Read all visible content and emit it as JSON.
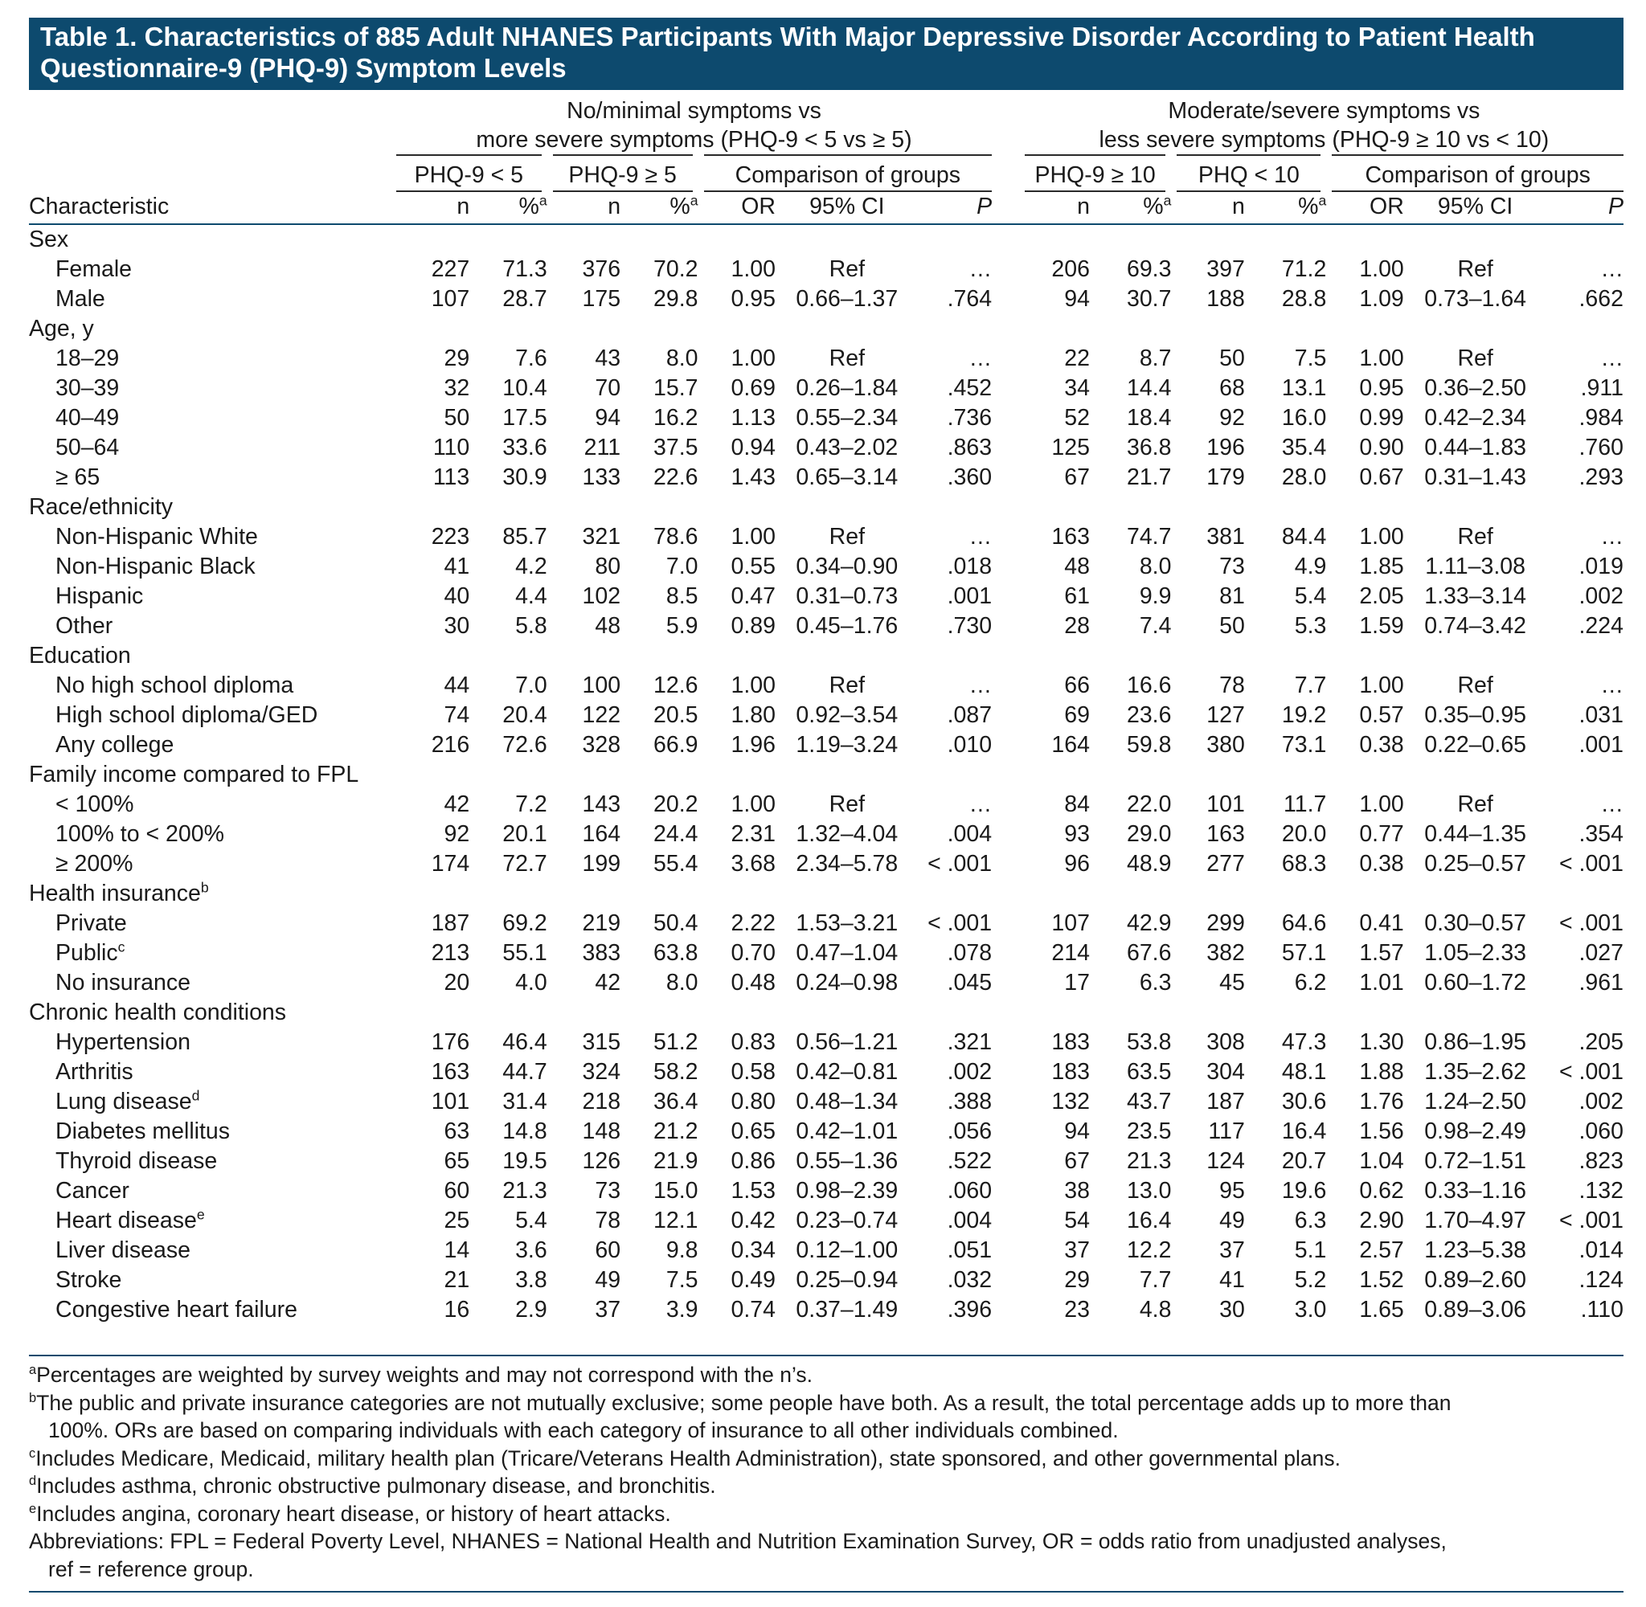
{
  "title": {
    "line1": "Table 1. Characteristics of 885 Adult NHANES Participants With Major Depressive Disorder According to Patient Health",
    "line2": "Questionnaire-9 (PHQ-9) Symptom Levels"
  },
  "groups": {
    "left_line1": "No/minimal symptoms vs",
    "left_line2": "more severe symptoms (PHQ-9 < 5 vs ≥ 5)",
    "right_line1": "Moderate/severe symptoms vs",
    "right_line2": "less severe symptoms (PHQ-9 ≥ 10 vs < 10)"
  },
  "subgroups": {
    "a": "PHQ-9 < 5",
    "b": "PHQ-9 ≥ 5",
    "c": "Comparison of groups",
    "d": "PHQ-9 ≥ 10",
    "e": "PHQ < 10",
    "f": "Comparison of groups"
  },
  "columns": {
    "characteristic": "Characteristic",
    "n": "n",
    "pct": "%",
    "pct_sup": "a",
    "or": "OR",
    "ci": "95% CI",
    "p": "P"
  },
  "rows": [
    {
      "label": "Sex",
      "type": "section"
    },
    {
      "label": "Female",
      "type": "item",
      "cells": [
        "227",
        "71.3",
        "376",
        "70.2",
        "1.00",
        "Ref",
        "…",
        "206",
        "69.3",
        "397",
        "71.2",
        "1.00",
        "Ref",
        "…"
      ]
    },
    {
      "label": "Male",
      "type": "item",
      "cells": [
        "107",
        "28.7",
        "175",
        "29.8",
        "0.95",
        "0.66–1.37",
        ".764",
        "94",
        "30.7",
        "188",
        "28.8",
        "1.09",
        "0.73–1.64",
        ".662"
      ]
    },
    {
      "label": "Age, y",
      "type": "section"
    },
    {
      "label": "18–29",
      "type": "item",
      "cells": [
        "29",
        "7.6",
        "43",
        "8.0",
        "1.00",
        "Ref",
        "…",
        "22",
        "8.7",
        "50",
        "7.5",
        "1.00",
        "Ref",
        "…"
      ]
    },
    {
      "label": "30–39",
      "type": "item",
      "cells": [
        "32",
        "10.4",
        "70",
        "15.7",
        "0.69",
        "0.26–1.84",
        ".452",
        "34",
        "14.4",
        "68",
        "13.1",
        "0.95",
        "0.36–2.50",
        ".911"
      ]
    },
    {
      "label": "40–49",
      "type": "item",
      "cells": [
        "50",
        "17.5",
        "94",
        "16.2",
        "1.13",
        "0.55–2.34",
        ".736",
        "52",
        "18.4",
        "92",
        "16.0",
        "0.99",
        "0.42–2.34",
        ".984"
      ]
    },
    {
      "label": "50–64",
      "type": "item",
      "cells": [
        "110",
        "33.6",
        "211",
        "37.5",
        "0.94",
        "0.43–2.02",
        ".863",
        "125",
        "36.8",
        "196",
        "35.4",
        "0.90",
        "0.44–1.83",
        ".760"
      ]
    },
    {
      "label": "≥ 65",
      "type": "item",
      "cells": [
        "113",
        "30.9",
        "133",
        "22.6",
        "1.43",
        "0.65–3.14",
        ".360",
        "67",
        "21.7",
        "179",
        "28.0",
        "0.67",
        "0.31–1.43",
        ".293"
      ]
    },
    {
      "label": "Race/ethnicity",
      "type": "section"
    },
    {
      "label": "Non-Hispanic White",
      "type": "item",
      "cells": [
        "223",
        "85.7",
        "321",
        "78.6",
        "1.00",
        "Ref",
        "…",
        "163",
        "74.7",
        "381",
        "84.4",
        "1.00",
        "Ref",
        "…"
      ]
    },
    {
      "label": "Non-Hispanic Black",
      "type": "item",
      "cells": [
        "41",
        "4.2",
        "80",
        "7.0",
        "0.55",
        "0.34–0.90",
        ".018",
        "48",
        "8.0",
        "73",
        "4.9",
        "1.85",
        "1.11–3.08",
        ".019"
      ]
    },
    {
      "label": "Hispanic",
      "type": "item",
      "cells": [
        "40",
        "4.4",
        "102",
        "8.5",
        "0.47",
        "0.31–0.73",
        ".001",
        "61",
        "9.9",
        "81",
        "5.4",
        "2.05",
        "1.33–3.14",
        ".002"
      ]
    },
    {
      "label": "Other",
      "type": "item",
      "cells": [
        "30",
        "5.8",
        "48",
        "5.9",
        "0.89",
        "0.45–1.76",
        ".730",
        "28",
        "7.4",
        "50",
        "5.3",
        "1.59",
        "0.74–3.42",
        ".224"
      ]
    },
    {
      "label": "Education",
      "type": "section"
    },
    {
      "label": "No high school diploma",
      "type": "item",
      "cells": [
        "44",
        "7.0",
        "100",
        "12.6",
        "1.00",
        "Ref",
        "…",
        "66",
        "16.6",
        "78",
        "7.7",
        "1.00",
        "Ref",
        "…"
      ]
    },
    {
      "label": "High school diploma/GED",
      "type": "item",
      "cells": [
        "74",
        "20.4",
        "122",
        "20.5",
        "1.80",
        "0.92–3.54",
        ".087",
        "69",
        "23.6",
        "127",
        "19.2",
        "0.57",
        "0.35–0.95",
        ".031"
      ]
    },
    {
      "label": "Any college",
      "type": "item",
      "cells": [
        "216",
        "72.6",
        "328",
        "66.9",
        "1.96",
        "1.19–3.24",
        ".010",
        "164",
        "59.8",
        "380",
        "73.1",
        "0.38",
        "0.22–0.65",
        ".001"
      ]
    },
    {
      "label": "Family income compared to FPL",
      "type": "section"
    },
    {
      "label": "< 100%",
      "type": "item",
      "cells": [
        "42",
        "7.2",
        "143",
        "20.2",
        "1.00",
        "Ref",
        "…",
        "84",
        "22.0",
        "101",
        "11.7",
        "1.00",
        "Ref",
        "…"
      ]
    },
    {
      "label": "100% to < 200%",
      "type": "item",
      "cells": [
        "92",
        "20.1",
        "164",
        "24.4",
        "2.31",
        "1.32–4.04",
        ".004",
        "93",
        "29.0",
        "163",
        "20.0",
        "0.77",
        "0.44–1.35",
        ".354"
      ]
    },
    {
      "label": "≥ 200%",
      "type": "item",
      "cells": [
        "174",
        "72.7",
        "199",
        "55.4",
        "3.68",
        "2.34–5.78",
        "< .001",
        "96",
        "48.9",
        "277",
        "68.3",
        "0.38",
        "0.25–0.57",
        "< .001"
      ]
    },
    {
      "label": "Health insurance",
      "sup": "b",
      "type": "section"
    },
    {
      "label": "Private",
      "type": "item",
      "cells": [
        "187",
        "69.2",
        "219",
        "50.4",
        "2.22",
        "1.53–3.21",
        "< .001",
        "107",
        "42.9",
        "299",
        "64.6",
        "0.41",
        "0.30–0.57",
        "< .001"
      ]
    },
    {
      "label": "Public",
      "sup": "c",
      "type": "item",
      "cells": [
        "213",
        "55.1",
        "383",
        "63.8",
        "0.70",
        "0.47–1.04",
        ".078",
        "214",
        "67.6",
        "382",
        "57.1",
        "1.57",
        "1.05–2.33",
        ".027"
      ]
    },
    {
      "label": "No insurance",
      "type": "item",
      "cells": [
        "20",
        "4.0",
        "42",
        "8.0",
        "0.48",
        "0.24–0.98",
        ".045",
        "17",
        "6.3",
        "45",
        "6.2",
        "1.01",
        "0.60–1.72",
        ".961"
      ]
    },
    {
      "label": "Chronic health conditions",
      "type": "section"
    },
    {
      "label": "Hypertension",
      "type": "item",
      "cells": [
        "176",
        "46.4",
        "315",
        "51.2",
        "0.83",
        "0.56–1.21",
        ".321",
        "183",
        "53.8",
        "308",
        "47.3",
        "1.30",
        "0.86–1.95",
        ".205"
      ]
    },
    {
      "label": "Arthritis",
      "type": "item",
      "cells": [
        "163",
        "44.7",
        "324",
        "58.2",
        "0.58",
        "0.42–0.81",
        ".002",
        "183",
        "63.5",
        "304",
        "48.1",
        "1.88",
        "1.35–2.62",
        "< .001"
      ]
    },
    {
      "label": "Lung disease",
      "sup": "d",
      "type": "item",
      "cells": [
        "101",
        "31.4",
        "218",
        "36.4",
        "0.80",
        "0.48–1.34",
        ".388",
        "132",
        "43.7",
        "187",
        "30.6",
        "1.76",
        "1.24–2.50",
        ".002"
      ]
    },
    {
      "label": "Diabetes mellitus",
      "type": "item",
      "cells": [
        "63",
        "14.8",
        "148",
        "21.2",
        "0.65",
        "0.42–1.01",
        ".056",
        "94",
        "23.5",
        "117",
        "16.4",
        "1.56",
        "0.98–2.49",
        ".060"
      ]
    },
    {
      "label": "Thyroid disease",
      "type": "item",
      "cells": [
        "65",
        "19.5",
        "126",
        "21.9",
        "0.86",
        "0.55–1.36",
        ".522",
        "67",
        "21.3",
        "124",
        "20.7",
        "1.04",
        "0.72–1.51",
        ".823"
      ]
    },
    {
      "label": "Cancer",
      "type": "item",
      "cells": [
        "60",
        "21.3",
        "73",
        "15.0",
        "1.53",
        "0.98–2.39",
        ".060",
        "38",
        "13.0",
        "95",
        "19.6",
        "0.62",
        "0.33–1.16",
        ".132"
      ]
    },
    {
      "label": "Heart disease",
      "sup": "e",
      "type": "item",
      "cells": [
        "25",
        "5.4",
        "78",
        "12.1",
        "0.42",
        "0.23–0.74",
        ".004",
        "54",
        "16.4",
        "49",
        "6.3",
        "2.90",
        "1.70–4.97",
        "< .001"
      ]
    },
    {
      "label": "Liver disease",
      "type": "item",
      "cells": [
        "14",
        "3.6",
        "60",
        "9.8",
        "0.34",
        "0.12–1.00",
        ".051",
        "37",
        "12.2",
        "37",
        "5.1",
        "2.57",
        "1.23–5.38",
        ".014"
      ]
    },
    {
      "label": "Stroke",
      "type": "item",
      "cells": [
        "21",
        "3.8",
        "49",
        "7.5",
        "0.49",
        "0.25–0.94",
        ".032",
        "29",
        "7.7",
        "41",
        "5.2",
        "1.52",
        "0.89–2.60",
        ".124"
      ]
    },
    {
      "label": "Congestive heart failure",
      "type": "item",
      "cells": [
        "16",
        "2.9",
        "37",
        "3.9",
        "0.74",
        "0.37–1.49",
        ".396",
        "23",
        "4.8",
        "30",
        "3.0",
        "1.65",
        "0.89–3.06",
        ".110"
      ]
    }
  ],
  "footnotes": {
    "a": {
      "mark": "a",
      "text": "Percentages are weighted by survey weights and may not correspond with the n’s."
    },
    "b": {
      "mark": "b",
      "text": "The public and private insurance categories are not mutually exclusive; some people have both. As a result, the total percentage adds up to more than",
      "cont": "100%. ORs are based on comparing individuals with each category of insurance to all other individuals combined."
    },
    "c": {
      "mark": "c",
      "text": "Includes Medicare, Medicaid, military health plan (Tricare/Veterans Health Administration), state sponsored, and other governmental plans."
    },
    "d": {
      "mark": "d",
      "text": "Includes asthma, chronic obstructive pulmonary disease, and bronchitis."
    },
    "e": {
      "mark": "e",
      "text": "Includes angina, coronary heart disease, or history of heart attacks."
    },
    "abbrev": {
      "text": "Abbreviations: FPL = Federal Poverty Level, NHANES = National Health and Nutrition Examination Survey, OR = odds ratio from unadjusted analyses,",
      "cont": "ref = reference group."
    }
  },
  "colors": {
    "header_bg": "#0d4a6e",
    "header_text": "#ffffff",
    "rule": "#0d4a6e"
  }
}
